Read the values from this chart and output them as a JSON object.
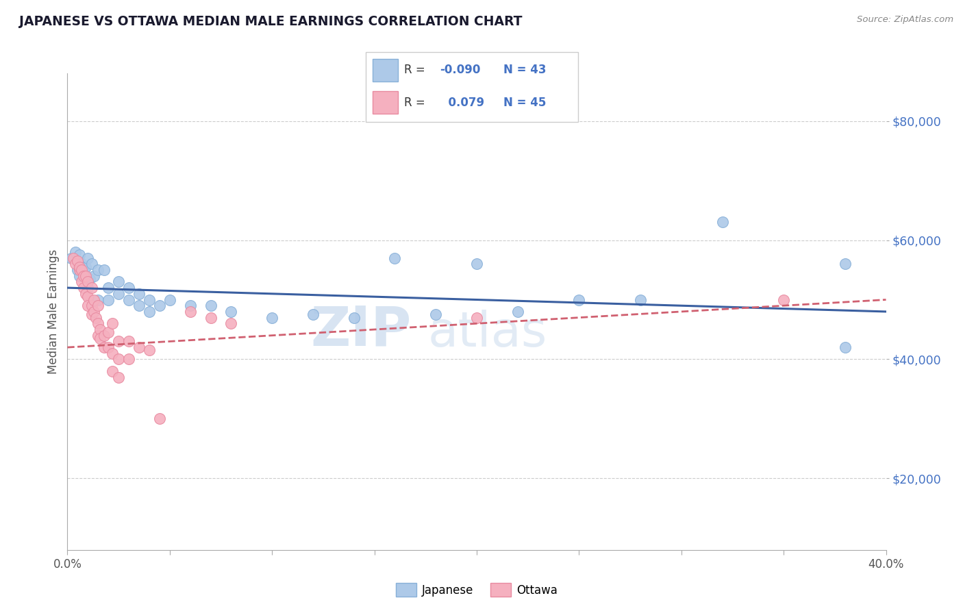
{
  "title": "JAPANESE VS OTTAWA MEDIAN MALE EARNINGS CORRELATION CHART",
  "source": "Source: ZipAtlas.com",
  "ylabel": "Median Male Earnings",
  "y_ticks": [
    20000,
    40000,
    60000,
    80000
  ],
  "y_tick_labels": [
    "$20,000",
    "$40,000",
    "$60,000",
    "$80,000"
  ],
  "xlim": [
    0.0,
    0.4
  ],
  "ylim": [
    8000,
    88000
  ],
  "legend_r_japanese": "-0.090",
  "legend_n_japanese": "43",
  "legend_r_ottawa": "0.079",
  "legend_n_ottawa": "45",
  "watermark_text": "ZIP",
  "watermark_text2": "atlas",
  "japanese_color": "#adc9e8",
  "ottawa_color": "#f5b0bf",
  "japanese_edge": "#88b0d8",
  "ottawa_edge": "#e88aa0",
  "trendline_japanese_color": "#3a5fa0",
  "trendline_ottawa_color": "#d06070",
  "japanese_scatter": [
    [
      0.002,
      57000
    ],
    [
      0.004,
      58000
    ],
    [
      0.005,
      55000
    ],
    [
      0.006,
      57500
    ],
    [
      0.006,
      54000
    ],
    [
      0.007,
      56000
    ],
    [
      0.008,
      55000
    ],
    [
      0.009,
      55500
    ],
    [
      0.01,
      57000
    ],
    [
      0.01,
      52000
    ],
    [
      0.011,
      53500
    ],
    [
      0.012,
      56000
    ],
    [
      0.013,
      54000
    ],
    [
      0.015,
      55000
    ],
    [
      0.015,
      50000
    ],
    [
      0.018,
      55000
    ],
    [
      0.02,
      52000
    ],
    [
      0.02,
      50000
    ],
    [
      0.025,
      53000
    ],
    [
      0.025,
      51000
    ],
    [
      0.03,
      52000
    ],
    [
      0.03,
      50000
    ],
    [
      0.035,
      51000
    ],
    [
      0.035,
      49000
    ],
    [
      0.04,
      50000
    ],
    [
      0.04,
      48000
    ],
    [
      0.045,
      49000
    ],
    [
      0.05,
      50000
    ],
    [
      0.06,
      49000
    ],
    [
      0.07,
      49000
    ],
    [
      0.08,
      48000
    ],
    [
      0.1,
      47000
    ],
    [
      0.12,
      47500
    ],
    [
      0.14,
      47000
    ],
    [
      0.16,
      57000
    ],
    [
      0.18,
      47500
    ],
    [
      0.2,
      56000
    ],
    [
      0.22,
      48000
    ],
    [
      0.25,
      50000
    ],
    [
      0.28,
      50000
    ],
    [
      0.32,
      63000
    ],
    [
      0.38,
      56000
    ],
    [
      0.38,
      42000
    ]
  ],
  "ottawa_scatter": [
    [
      0.003,
      57000
    ],
    [
      0.004,
      56000
    ],
    [
      0.005,
      56500
    ],
    [
      0.006,
      55000
    ],
    [
      0.006,
      55500
    ],
    [
      0.007,
      55000
    ],
    [
      0.007,
      53000
    ],
    [
      0.008,
      54000
    ],
    [
      0.008,
      52000
    ],
    [
      0.009,
      54000
    ],
    [
      0.009,
      51000
    ],
    [
      0.01,
      53000
    ],
    [
      0.01,
      50500
    ],
    [
      0.01,
      49000
    ],
    [
      0.012,
      52000
    ],
    [
      0.012,
      49000
    ],
    [
      0.012,
      47500
    ],
    [
      0.013,
      50000
    ],
    [
      0.013,
      48000
    ],
    [
      0.014,
      47000
    ],
    [
      0.015,
      49000
    ],
    [
      0.015,
      46000
    ],
    [
      0.015,
      44000
    ],
    [
      0.016,
      45000
    ],
    [
      0.016,
      43500
    ],
    [
      0.018,
      44000
    ],
    [
      0.018,
      42000
    ],
    [
      0.02,
      44500
    ],
    [
      0.02,
      42000
    ],
    [
      0.022,
      46000
    ],
    [
      0.022,
      41000
    ],
    [
      0.022,
      38000
    ],
    [
      0.025,
      43000
    ],
    [
      0.025,
      40000
    ],
    [
      0.025,
      37000
    ],
    [
      0.03,
      43000
    ],
    [
      0.03,
      40000
    ],
    [
      0.035,
      42000
    ],
    [
      0.04,
      41500
    ],
    [
      0.045,
      30000
    ],
    [
      0.06,
      48000
    ],
    [
      0.07,
      47000
    ],
    [
      0.08,
      46000
    ],
    [
      0.2,
      47000
    ],
    [
      0.35,
      50000
    ]
  ]
}
